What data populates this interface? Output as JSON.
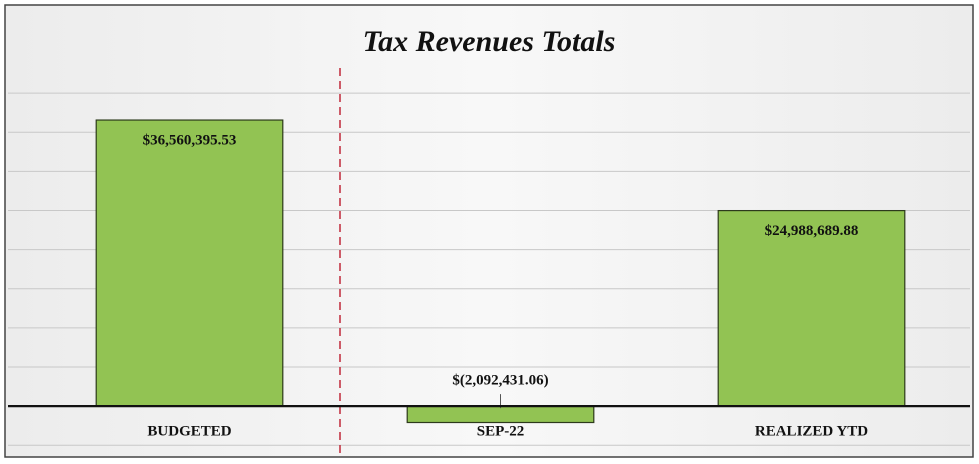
{
  "chart_data": {
    "type": "bar",
    "title": "Tax Revenues Totals",
    "categories": [
      "BUDGETED",
      "SEP-22",
      "REALIZED YTD"
    ],
    "values": [
      36560395.53,
      -2092431.06,
      24988689.88
    ],
    "value_labels": [
      "$36,560,395.53",
      "$(2,092,431.06)",
      "$24,988,689.88"
    ],
    "color": "#92c353",
    "ylim": [
      -6500000,
      45000000
    ],
    "yticks": [
      -5000000,
      0,
      5000000,
      10000000,
      15000000,
      20000000,
      25000000,
      30000000,
      35000000,
      40000000
    ],
    "grid": true
  }
}
